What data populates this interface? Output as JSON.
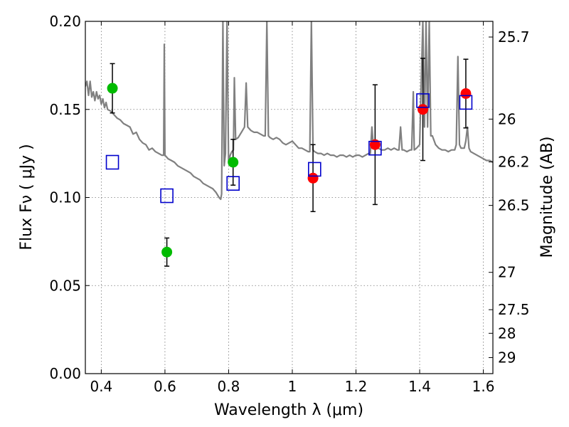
{
  "chart_data": {
    "type": "scatter",
    "title": "",
    "xlabel": "Wavelength  λ (μm)",
    "ylabel": "Flux  Fν  ( μJy )",
    "y2label": "Magnitude (AB)",
    "xlim": [
      0.35,
      1.63
    ],
    "ylim": [
      0.0,
      0.2
    ],
    "grid": true,
    "x_ticks": [
      0.4,
      0.6,
      0.8,
      1.0,
      1.2,
      1.4,
      1.6
    ],
    "x_tick_labels": [
      "0.4",
      "0.6",
      "0.8",
      "1",
      "1.2",
      "1.4",
      "1.6"
    ],
    "y_ticks": [
      0.0,
      0.05,
      0.1,
      0.15,
      0.2
    ],
    "y_tick_labels": [
      "0.00",
      "0.05",
      "0.10",
      "0.15",
      "0.20"
    ],
    "y2_ticks": [
      {
        "flux": 0.1911,
        "label": "25.7"
      },
      {
        "flux": 0.1445,
        "label": "26"
      },
      {
        "flux": 0.1202,
        "label": "26.2"
      },
      {
        "flux": 0.0955,
        "label": "26.5"
      },
      {
        "flux": 0.0575,
        "label": "27"
      },
      {
        "flux": 0.0363,
        "label": "27.5"
      },
      {
        "flux": 0.0229,
        "label": "28"
      },
      {
        "flux": 0.0091,
        "label": "29"
      }
    ],
    "series": [
      {
        "marker": "circle",
        "color": "#00bb00",
        "points": [
          {
            "x": 0.435,
            "y": 0.162,
            "err": 0.014
          },
          {
            "x": 0.606,
            "y": 0.069,
            "err": 0.008
          },
          {
            "x": 0.814,
            "y": 0.12,
            "err": 0.013
          }
        ]
      },
      {
        "marker": "circle",
        "color": "#ff0000",
        "points": [
          {
            "x": 1.065,
            "y": 0.111,
            "err": 0.019
          },
          {
            "x": 1.26,
            "y": 0.13,
            "err": 0.034
          },
          {
            "x": 1.41,
            "y": 0.15,
            "err": 0.029
          },
          {
            "x": 1.545,
            "y": 0.159,
            "err": 0.0195
          }
        ]
      },
      {
        "marker": "open-square",
        "color": "#0000cc",
        "points": [
          {
            "x": 0.435,
            "y": 0.12
          },
          {
            "x": 0.606,
            "y": 0.101
          },
          {
            "x": 0.814,
            "y": 0.108
          },
          {
            "x": 1.07,
            "y": 0.116
          },
          {
            "x": 1.26,
            "y": 0.128
          },
          {
            "x": 1.41,
            "y": 0.155
          },
          {
            "x": 1.545,
            "y": 0.154
          }
        ]
      },
      {
        "type": "line",
        "color": "#808080",
        "points": [
          [
            0.35,
            0.163
          ],
          [
            0.355,
            0.166
          ],
          [
            0.36,
            0.158
          ],
          [
            0.365,
            0.166
          ],
          [
            0.37,
            0.157
          ],
          [
            0.375,
            0.16
          ],
          [
            0.38,
            0.155
          ],
          [
            0.385,
            0.16
          ],
          [
            0.39,
            0.156
          ],
          [
            0.395,
            0.158
          ],
          [
            0.4,
            0.153
          ],
          [
            0.405,
            0.156
          ],
          [
            0.41,
            0.151
          ],
          [
            0.415,
            0.154
          ],
          [
            0.42,
            0.15
          ],
          [
            0.43,
            0.149
          ],
          [
            0.44,
            0.147
          ],
          [
            0.45,
            0.145
          ],
          [
            0.46,
            0.144
          ],
          [
            0.47,
            0.142
          ],
          [
            0.48,
            0.141
          ],
          [
            0.49,
            0.14
          ],
          [
            0.5,
            0.136
          ],
          [
            0.51,
            0.137
          ],
          [
            0.52,
            0.133
          ],
          [
            0.53,
            0.131
          ],
          [
            0.54,
            0.13
          ],
          [
            0.55,
            0.127
          ],
          [
            0.56,
            0.128
          ],
          [
            0.57,
            0.126
          ],
          [
            0.58,
            0.125
          ],
          [
            0.59,
            0.124
          ],
          [
            0.596,
            0.124
          ],
          [
            0.598,
            0.187
          ],
          [
            0.6,
            0.124
          ],
          [
            0.61,
            0.122
          ],
          [
            0.62,
            0.121
          ],
          [
            0.63,
            0.12
          ],
          [
            0.64,
            0.118
          ],
          [
            0.65,
            0.117
          ],
          [
            0.66,
            0.116
          ],
          [
            0.67,
            0.115
          ],
          [
            0.68,
            0.114
          ],
          [
            0.69,
            0.112
          ],
          [
            0.7,
            0.111
          ],
          [
            0.71,
            0.11
          ],
          [
            0.72,
            0.108
          ],
          [
            0.73,
            0.107
          ],
          [
            0.74,
            0.106
          ],
          [
            0.75,
            0.105
          ],
          [
            0.76,
            0.103
          ],
          [
            0.77,
            0.1
          ],
          [
            0.775,
            0.099
          ],
          [
            0.778,
            0.102
          ],
          [
            0.782,
            0.2
          ],
          [
            0.786,
            0.118
          ],
          [
            0.79,
            0.125
          ],
          [
            0.795,
            0.2
          ],
          [
            0.8,
            0.12
          ],
          [
            0.805,
            0.124
          ],
          [
            0.81,
            0.126
          ],
          [
            0.815,
            0.127
          ],
          [
            0.818,
            0.168
          ],
          [
            0.822,
            0.133
          ],
          [
            0.83,
            0.134
          ],
          [
            0.84,
            0.137
          ],
          [
            0.85,
            0.14
          ],
          [
            0.855,
            0.165
          ],
          [
            0.86,
            0.14
          ],
          [
            0.87,
            0.138
          ],
          [
            0.88,
            0.137
          ],
          [
            0.89,
            0.137
          ],
          [
            0.9,
            0.136
          ],
          [
            0.91,
            0.135
          ],
          [
            0.915,
            0.135
          ],
          [
            0.92,
            0.2
          ],
          [
            0.925,
            0.135
          ],
          [
            0.93,
            0.134
          ],
          [
            0.94,
            0.133
          ],
          [
            0.95,
            0.134
          ],
          [
            0.96,
            0.133
          ],
          [
            0.97,
            0.131
          ],
          [
            0.98,
            0.13
          ],
          [
            0.99,
            0.131
          ],
          [
            1.0,
            0.132
          ],
          [
            1.01,
            0.13
          ],
          [
            1.02,
            0.128
          ],
          [
            1.03,
            0.128
          ],
          [
            1.04,
            0.127
          ],
          [
            1.05,
            0.126
          ],
          [
            1.055,
            0.126
          ],
          [
            1.06,
            0.2
          ],
          [
            1.065,
            0.127
          ],
          [
            1.07,
            0.126
          ],
          [
            1.08,
            0.125
          ],
          [
            1.09,
            0.125
          ],
          [
            1.1,
            0.124
          ],
          [
            1.11,
            0.125
          ],
          [
            1.12,
            0.124
          ],
          [
            1.13,
            0.124
          ],
          [
            1.14,
            0.123
          ],
          [
            1.15,
            0.124
          ],
          [
            1.16,
            0.124
          ],
          [
            1.17,
            0.123
          ],
          [
            1.18,
            0.124
          ],
          [
            1.19,
            0.123
          ],
          [
            1.2,
            0.124
          ],
          [
            1.21,
            0.124
          ],
          [
            1.22,
            0.123
          ],
          [
            1.23,
            0.124
          ],
          [
            1.24,
            0.125
          ],
          [
            1.245,
            0.125
          ],
          [
            1.25,
            0.14
          ],
          [
            1.255,
            0.128
          ],
          [
            1.26,
            0.13
          ],
          [
            1.27,
            0.128
          ],
          [
            1.28,
            0.127
          ],
          [
            1.29,
            0.127
          ],
          [
            1.3,
            0.128
          ],
          [
            1.31,
            0.127
          ],
          [
            1.32,
            0.128
          ],
          [
            1.33,
            0.127
          ],
          [
            1.335,
            0.127
          ],
          [
            1.34,
            0.14
          ],
          [
            1.345,
            0.127
          ],
          [
            1.35,
            0.127
          ],
          [
            1.36,
            0.126
          ],
          [
            1.37,
            0.127
          ],
          [
            1.375,
            0.127
          ],
          [
            1.38,
            0.16
          ],
          [
            1.383,
            0.127
          ],
          [
            1.39,
            0.128
          ],
          [
            1.4,
            0.13
          ],
          [
            1.41,
            0.2
          ],
          [
            1.415,
            0.14
          ],
          [
            1.42,
            0.2
          ],
          [
            1.425,
            0.14
          ],
          [
            1.43,
            0.2
          ],
          [
            1.435,
            0.135
          ],
          [
            1.44,
            0.135
          ],
          [
            1.45,
            0.13
          ],
          [
            1.46,
            0.128
          ],
          [
            1.47,
            0.127
          ],
          [
            1.48,
            0.127
          ],
          [
            1.49,
            0.126
          ],
          [
            1.5,
            0.127
          ],
          [
            1.51,
            0.127
          ],
          [
            1.515,
            0.13
          ],
          [
            1.52,
            0.18
          ],
          [
            1.525,
            0.13
          ],
          [
            1.53,
            0.128
          ],
          [
            1.54,
            0.128
          ],
          [
            1.545,
            0.132
          ],
          [
            1.55,
            0.14
          ],
          [
            1.555,
            0.128
          ],
          [
            1.56,
            0.126
          ],
          [
            1.57,
            0.125
          ],
          [
            1.58,
            0.124
          ],
          [
            1.59,
            0.123
          ],
          [
            1.6,
            0.122
          ],
          [
            1.61,
            0.121
          ],
          [
            1.62,
            0.121
          ],
          [
            1.63,
            0.12
          ]
        ]
      }
    ]
  }
}
